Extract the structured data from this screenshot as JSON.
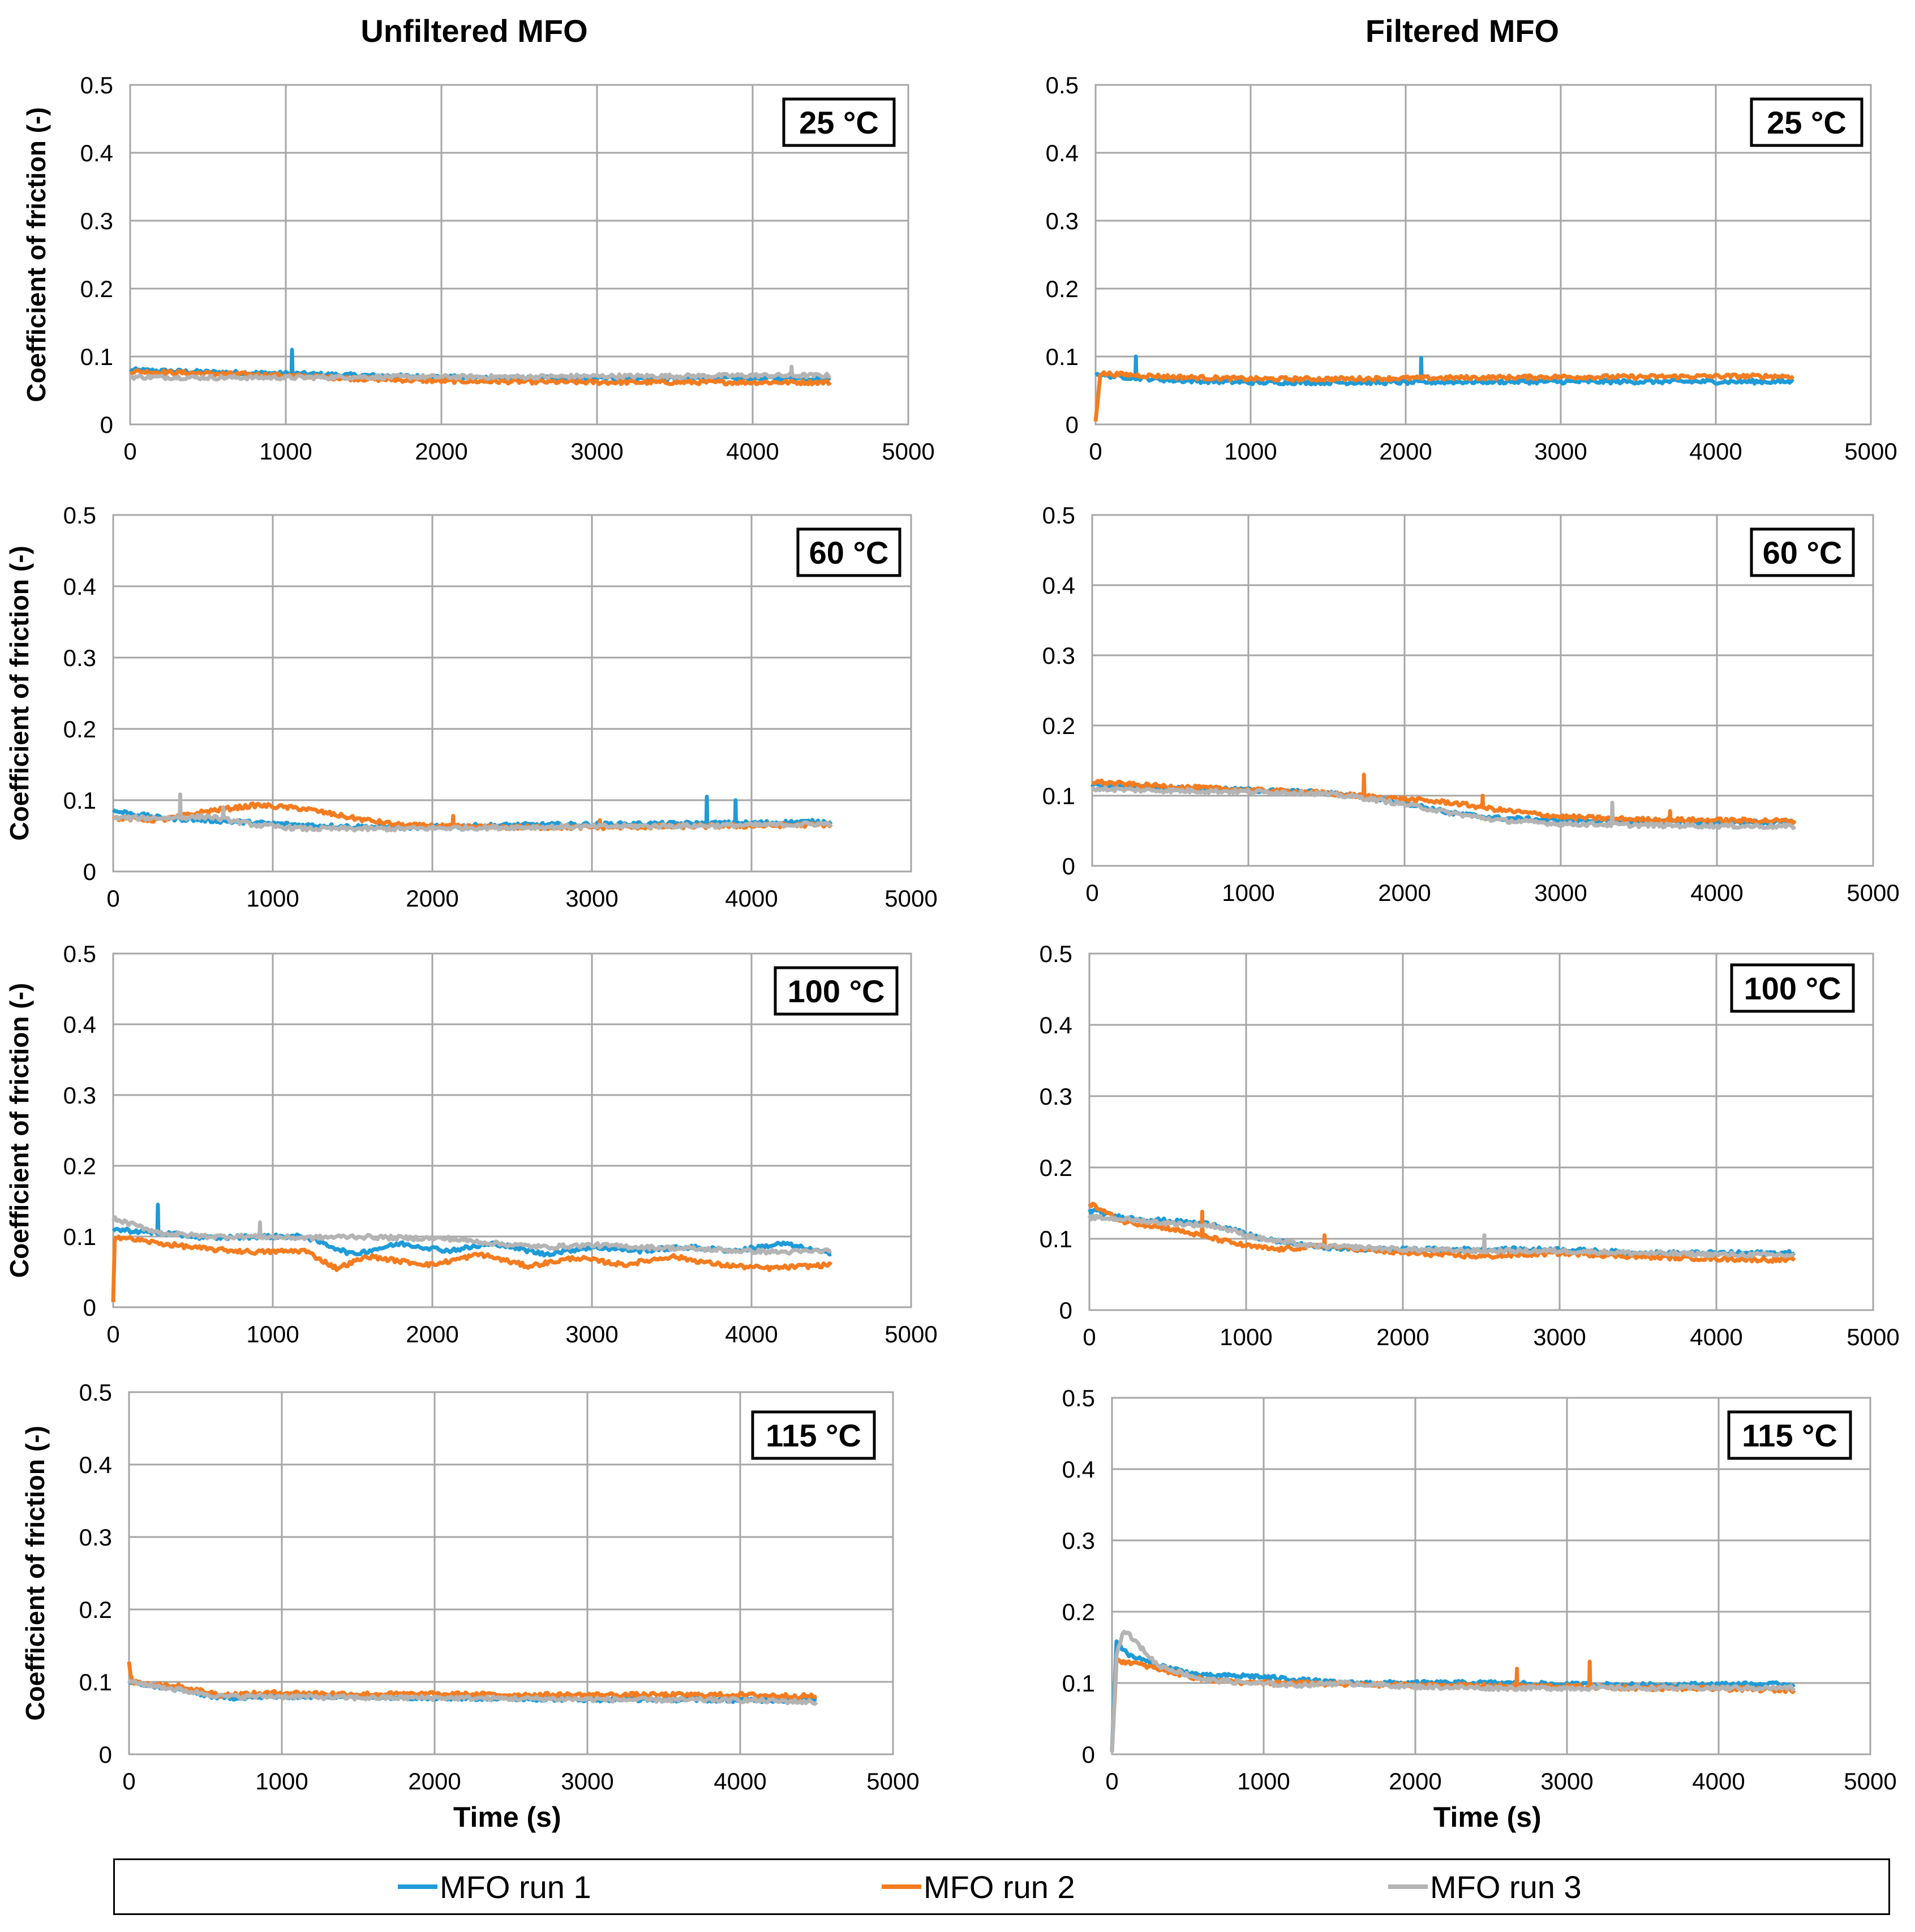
{
  "column_titles": [
    "Unfiltered MFO",
    "Filtered MFO"
  ],
  "legend": {
    "items": [
      {
        "label": "MFO run 1",
        "color": "#1f9bd7"
      },
      {
        "label": "MFO run 2",
        "color": "#f47c20"
      },
      {
        "label": "MFO run 3",
        "color": "#b4b4b4"
      }
    ]
  },
  "chart_data": [
    {
      "type": "line",
      "column": "Unfiltered MFO",
      "temperature_label": "25 °C",
      "ylabel": "Coefficient of friction (-)",
      "xlabel": "",
      "xlim": [
        0,
        5000
      ],
      "ylim": [
        0,
        0.5
      ],
      "xticks": [
        "0",
        "1000",
        "2000",
        "3000",
        "4000",
        "5000"
      ],
      "yticks": [
        "0",
        "0.1",
        "0.2",
        "0.3",
        "0.4",
        "0.5"
      ],
      "series": [
        {
          "name": "MFO run 1",
          "x": [
            0,
            500,
            1000,
            1500,
            2000,
            2500,
            3000,
            3500,
            4000,
            4500
          ],
          "y": [
            0.08,
            0.077,
            0.075,
            0.072,
            0.07,
            0.068,
            0.068,
            0.068,
            0.068,
            0.068
          ],
          "spikes": [
            [
              1040,
              0.11
            ]
          ]
        },
        {
          "name": "MFO run 2",
          "x": [
            0,
            500,
            1000,
            1500,
            2000,
            2500,
            3000,
            3500,
            4000,
            4500
          ],
          "y": [
            0.078,
            0.075,
            0.072,
            0.067,
            0.064,
            0.063,
            0.062,
            0.062,
            0.062,
            0.062
          ],
          "spikes": []
        },
        {
          "name": "MFO run 3",
          "x": [
            0,
            500,
            1000,
            1500,
            2000,
            2500,
            3000,
            3500,
            4000,
            4500
          ],
          "y": [
            0.07,
            0.069,
            0.069,
            0.07,
            0.07,
            0.07,
            0.071,
            0.071,
            0.072,
            0.072
          ],
          "spikes": [
            [
              4250,
              0.085
            ]
          ]
        }
      ]
    },
    {
      "type": "line",
      "column": "Filtered MFO",
      "temperature_label": "25 °C",
      "ylabel": "",
      "xlabel": "",
      "xlim": [
        0,
        5000
      ],
      "ylim": [
        0,
        0.5
      ],
      "xticks": [
        "0",
        "1000",
        "2000",
        "3000",
        "4000",
        "5000"
      ],
      "yticks": [
        "0",
        "0.1",
        "0.2",
        "0.3",
        "0.4",
        "0.5"
      ],
      "series": [
        {
          "name": "MFO run 1",
          "x": [
            0,
            50,
            500,
            1000,
            1500,
            2000,
            2500,
            3000,
            3500,
            4000,
            4500
          ],
          "y": [
            0.075,
            0.072,
            0.065,
            0.062,
            0.062,
            0.062,
            0.063,
            0.063,
            0.063,
            0.063,
            0.063
          ],
          "spikes": [
            [
              260,
              0.1
            ],
            [
              2100,
              0.098
            ]
          ]
        },
        {
          "name": "MFO run 2",
          "x": [
            0,
            30,
            500,
            1000,
            1500,
            2000,
            2500,
            3000,
            3500,
            4000,
            4500
          ],
          "y": [
            0.005,
            0.075,
            0.07,
            0.067,
            0.067,
            0.068,
            0.069,
            0.07,
            0.07,
            0.071,
            0.071
          ],
          "spikes": []
        },
        {
          "name": "MFO run 3",
          "x": [],
          "y": [],
          "spikes": []
        }
      ]
    },
    {
      "type": "line",
      "column": "Unfiltered MFO",
      "temperature_label": "60 °C",
      "ylabel": "Coefficient of friction (-)",
      "xlabel": "",
      "xlim": [
        0,
        5000
      ],
      "ylim": [
        0,
        0.5
      ],
      "xticks": [
        "0",
        "1000",
        "2000",
        "3000",
        "4000",
        "5000"
      ],
      "yticks": [
        "0",
        "0.1",
        "0.2",
        "0.3",
        "0.4",
        "0.5"
      ],
      "series": [
        {
          "name": "MFO run 1",
          "x": [
            0,
            300,
            600,
            900,
            1200,
            1500,
            1800,
            2100,
            2500,
            3000,
            3500,
            4000,
            4500
          ],
          "y": [
            0.085,
            0.075,
            0.072,
            0.068,
            0.065,
            0.063,
            0.062,
            0.063,
            0.065,
            0.066,
            0.067,
            0.068,
            0.07
          ],
          "spikes": [
            [
              3720,
              0.105
            ],
            [
              3900,
              0.1
            ]
          ]
        },
        {
          "name": "MFO run 2",
          "x": [
            0,
            300,
            600,
            900,
            1200,
            1500,
            1800,
            2100,
            2500,
            3000,
            3500,
            4000,
            4500
          ],
          "y": [
            0.075,
            0.072,
            0.085,
            0.093,
            0.088,
            0.075,
            0.065,
            0.063,
            0.062,
            0.062,
            0.063,
            0.064,
            0.066
          ],
          "spikes": [
            [
              2130,
              0.078
            ],
            [
              3050,
              0.072
            ]
          ]
        },
        {
          "name": "MFO run 3",
          "x": [
            0,
            300,
            600,
            900,
            1200,
            1500,
            1800,
            2100,
            2500,
            3000,
            3500,
            4000,
            4500
          ],
          "y": [
            0.075,
            0.075,
            0.077,
            0.065,
            0.06,
            0.06,
            0.06,
            0.061,
            0.062,
            0.063,
            0.064,
            0.065,
            0.067
          ],
          "spikes": [
            [
              420,
              0.108
            ],
            [
              690,
              0.09
            ]
          ]
        }
      ]
    },
    {
      "type": "line",
      "column": "Filtered MFO",
      "temperature_label": "60 °C",
      "ylabel": "",
      "xlabel": "",
      "xlim": [
        0,
        5000
      ],
      "ylim": [
        0,
        0.5
      ],
      "xticks": [
        "0",
        "1000",
        "2000",
        "3000",
        "4000",
        "5000"
      ],
      "yticks": [
        "0",
        "0.1",
        "0.2",
        "0.3",
        "0.4",
        "0.5"
      ],
      "series": [
        {
          "name": "MFO run 1",
          "x": [
            0,
            300,
            600,
            1000,
            1400,
            1700,
            2000,
            2300,
            2600,
            3000,
            3500,
            4000,
            4500
          ],
          "y": [
            0.115,
            0.112,
            0.11,
            0.108,
            0.105,
            0.1,
            0.09,
            0.075,
            0.068,
            0.065,
            0.063,
            0.062,
            0.062
          ],
          "spikes": []
        },
        {
          "name": "MFO run 2",
          "x": [
            0,
            300,
            600,
            1000,
            1400,
            1700,
            2000,
            2300,
            2600,
            3000,
            3500,
            4000,
            4500
          ],
          "y": [
            0.12,
            0.115,
            0.112,
            0.108,
            0.105,
            0.1,
            0.095,
            0.09,
            0.08,
            0.07,
            0.066,
            0.065,
            0.064
          ],
          "spikes": [
            [
              1740,
              0.13
            ],
            [
              2500,
              0.1
            ],
            [
              3700,
              0.078
            ]
          ]
        },
        {
          "name": "MFO run 3",
          "x": [
            0,
            300,
            600,
            1000,
            1400,
            1700,
            2000,
            2300,
            2600,
            3000,
            3500,
            4000,
            4500
          ],
          "y": [
            0.11,
            0.108,
            0.107,
            0.106,
            0.104,
            0.098,
            0.088,
            0.075,
            0.065,
            0.06,
            0.058,
            0.057,
            0.056
          ],
          "spikes": [
            [
              3330,
              0.09
            ]
          ]
        }
      ]
    },
    {
      "type": "line",
      "column": "Unfiltered MFO",
      "temperature_label": "100 °C",
      "ylabel": "Coefficient of friction (-)",
      "xlabel": "",
      "xlim": [
        0,
        5000
      ],
      "ylim": [
        0,
        0.5
      ],
      "xticks": [
        "0",
        "1000",
        "2000",
        "3000",
        "4000",
        "5000"
      ],
      "yticks": [
        "0",
        "0.1",
        "0.2",
        "0.3",
        "0.4",
        "0.5"
      ],
      "series": [
        {
          "name": "MFO run 1",
          "x": [
            0,
            300,
            600,
            900,
            1200,
            1500,
            1800,
            2100,
            2400,
            2700,
            3000,
            3300,
            3600,
            3900,
            4200,
            4500
          ],
          "y": [
            0.11,
            0.105,
            0.098,
            0.1,
            0.1,
            0.075,
            0.09,
            0.08,
            0.09,
            0.075,
            0.085,
            0.08,
            0.085,
            0.08,
            0.09,
            0.075
          ],
          "spikes": [
            [
              280,
              0.145
            ]
          ]
        },
        {
          "name": "MFO run 2",
          "x": [
            0,
            10,
            300,
            600,
            900,
            1200,
            1400,
            1600,
            1800,
            2000,
            2300,
            2600,
            2900,
            3200,
            3500,
            3800,
            4100,
            4500
          ],
          "y": [
            0.01,
            0.1,
            0.09,
            0.082,
            0.078,
            0.08,
            0.055,
            0.072,
            0.065,
            0.06,
            0.075,
            0.058,
            0.07,
            0.06,
            0.072,
            0.06,
            0.055,
            0.06
          ],
          "spikes": []
        },
        {
          "name": "MFO run 3",
          "x": [
            0,
            300,
            600,
            900,
            1200,
            1500,
            1800,
            2100,
            2400,
            2700,
            3000,
            3300,
            3600,
            3900,
            4200,
            4500
          ],
          "y": [
            0.125,
            0.105,
            0.1,
            0.1,
            0.098,
            0.1,
            0.098,
            0.097,
            0.09,
            0.085,
            0.088,
            0.085,
            0.083,
            0.08,
            0.078,
            0.08
          ],
          "spikes": [
            [
              920,
              0.12
            ]
          ]
        }
      ]
    },
    {
      "type": "line",
      "column": "Filtered MFO",
      "temperature_label": "100 °C",
      "ylabel": "",
      "xlabel": "",
      "xlim": [
        0,
        5000
      ],
      "ylim": [
        0,
        0.5
      ],
      "xticks": [
        "0",
        "1000",
        "2000",
        "3000",
        "4000",
        "5000"
      ],
      "yticks": [
        "0",
        "0.1",
        "0.2",
        "0.3",
        "0.4",
        "0.5"
      ],
      "series": [
        {
          "name": "MFO run 1",
          "x": [
            0,
            200,
            500,
            800,
            1100,
            1400,
            1700,
            2000,
            2500,
            3000,
            3500,
            4000,
            4500
          ],
          "y": [
            0.14,
            0.13,
            0.125,
            0.12,
            0.1,
            0.09,
            0.085,
            0.085,
            0.085,
            0.085,
            0.08,
            0.08,
            0.08
          ],
          "spikes": []
        },
        {
          "name": "MFO run 2",
          "x": [
            0,
            200,
            500,
            800,
            1000,
            1200,
            1500,
            2000,
            2500,
            3000,
            3500,
            4000,
            4500
          ],
          "y": [
            0.15,
            0.125,
            0.115,
            0.1,
            0.09,
            0.085,
            0.09,
            0.08,
            0.075,
            0.08,
            0.075,
            0.072,
            0.07
          ],
          "spikes": [
            [
              720,
              0.138
            ],
            [
              1500,
              0.105
            ]
          ]
        },
        {
          "name": "MFO run 3",
          "x": [
            0,
            200,
            500,
            800,
            1100,
            1400,
            1700,
            2000,
            2500,
            3000,
            3500,
            4000,
            4500
          ],
          "y": [
            0.13,
            0.128,
            0.122,
            0.118,
            0.1,
            0.09,
            0.088,
            0.085,
            0.083,
            0.083,
            0.08,
            0.078,
            0.077
          ],
          "spikes": [
            [
              2520,
              0.105
            ]
          ]
        }
      ]
    },
    {
      "type": "line",
      "column": "Unfiltered MFO",
      "temperature_label": "115 °C",
      "ylabel": "Coefficient of friction (-)",
      "xlabel": "Time (s)",
      "xlim": [
        0,
        5000
      ],
      "ylim": [
        0,
        0.5
      ],
      "xticks": [
        "0",
        "1000",
        "2000",
        "3000",
        "4000",
        "5000"
      ],
      "yticks": [
        "0",
        "0.1",
        "0.2",
        "0.3",
        "0.4",
        "0.5"
      ],
      "series": [
        {
          "name": "MFO run 1",
          "x": [
            0,
            300,
            600,
            1000,
            1500,
            2000,
            2500,
            3000,
            3500,
            4000,
            4500
          ],
          "y": [
            0.1,
            0.09,
            0.078,
            0.08,
            0.08,
            0.078,
            0.077,
            0.076,
            0.076,
            0.075,
            0.075
          ],
          "spikes": []
        },
        {
          "name": "MFO run 2",
          "x": [
            0,
            20,
            300,
            600,
            1000,
            1500,
            2000,
            2500,
            3000,
            3500,
            4000,
            4500
          ],
          "y": [
            0.125,
            0.1,
            0.095,
            0.082,
            0.085,
            0.083,
            0.083,
            0.082,
            0.082,
            0.082,
            0.082,
            0.08
          ],
          "spikes": []
        },
        {
          "name": "MFO run 3",
          "x": [
            0,
            300,
            600,
            1000,
            1500,
            2000,
            2500,
            3000,
            3500,
            4000,
            4500
          ],
          "y": [
            0.1,
            0.09,
            0.08,
            0.08,
            0.078,
            0.078,
            0.077,
            0.076,
            0.075,
            0.075,
            0.072
          ],
          "spikes": []
        }
      ]
    },
    {
      "type": "line",
      "column": "Filtered MFO",
      "temperature_label": "115 °C",
      "ylabel": "",
      "xlabel": "Time (s)",
      "xlim": [
        0,
        5000
      ],
      "ylim": [
        0,
        0.5
      ],
      "xticks": [
        "0",
        "1000",
        "2000",
        "3000",
        "4000",
        "5000"
      ],
      "yticks": [
        "0",
        "0.1",
        "0.2",
        "0.3",
        "0.4",
        "0.5"
      ],
      "series": [
        {
          "name": "MFO run 1",
          "x": [
            0,
            30,
            100,
            300,
            600,
            900,
            1200,
            1500,
            2000,
            2500,
            3000,
            3500,
            4000,
            4500
          ],
          "y": [
            0.005,
            0.16,
            0.14,
            0.125,
            0.11,
            0.11,
            0.105,
            0.1,
            0.1,
            0.1,
            0.098,
            0.097,
            0.098,
            0.098
          ],
          "spikes": []
        },
        {
          "name": "MFO run 2",
          "x": [
            0,
            30,
            100,
            300,
            600,
            900,
            1200,
            1500,
            2000,
            2500,
            3000,
            3500,
            4000,
            4500
          ],
          "y": [
            0.005,
            0.13,
            0.13,
            0.12,
            0.105,
            0.1,
            0.1,
            0.098,
            0.097,
            0.096,
            0.095,
            0.093,
            0.092,
            0.09
          ],
          "spikes": [
            [
              2670,
              0.12
            ],
            [
              3150,
              0.13
            ]
          ]
        },
        {
          "name": "MFO run 3",
          "x": [
            0,
            30,
            80,
            300,
            600,
            900,
            1200,
            1500,
            2000,
            2500,
            3000,
            3500,
            4000,
            4500
          ],
          "y": [
            0.005,
            0.14,
            0.175,
            0.125,
            0.105,
            0.1,
            0.097,
            0.1,
            0.095,
            0.093,
            0.093,
            0.093,
            0.093,
            0.093
          ],
          "spikes": []
        }
      ]
    }
  ]
}
